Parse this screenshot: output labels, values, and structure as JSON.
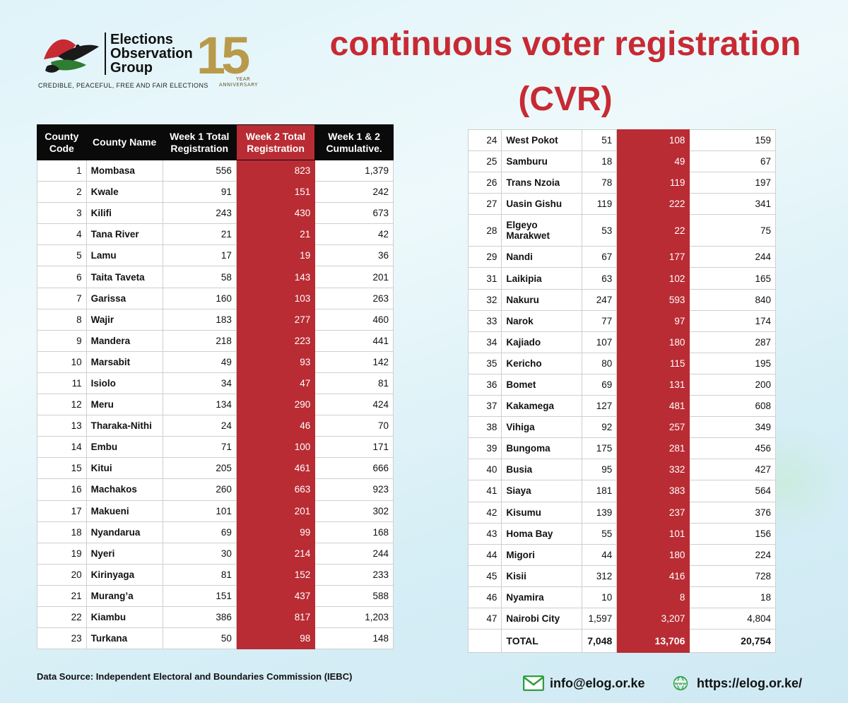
{
  "header": {
    "org_line1": "Elections",
    "org_line2": "Observation",
    "org_line3": "Group",
    "tagline": "CREDIBLE, PEACEFUL, FREE AND FAIR ELECTIONS",
    "anniversary_number": "15",
    "anniversary_year": "YEAR",
    "anniversary_label": "ANNIVERSARY",
    "title_line1": "continuous voter registration",
    "title_line2": "(CVR)"
  },
  "table": {
    "headers": {
      "code": "County Code",
      "name": "County Name",
      "week1": "Week 1 Total Registration",
      "week2": "Week 2 Total Registration",
      "cumulative": "Week 1 & 2 Cumulative."
    },
    "left_rows": [
      {
        "code": "1",
        "name": "Mombasa",
        "w1": "556",
        "w2": "823",
        "cum": "1,379"
      },
      {
        "code": "2",
        "name": "Kwale",
        "w1": "91",
        "w2": "151",
        "cum": "242"
      },
      {
        "code": "3",
        "name": "Kilifi",
        "w1": "243",
        "w2": "430",
        "cum": "673"
      },
      {
        "code": "4",
        "name": "Tana River",
        "w1": "21",
        "w2": "21",
        "cum": "42"
      },
      {
        "code": "5",
        "name": "Lamu",
        "w1": "17",
        "w2": "19",
        "cum": "36"
      },
      {
        "code": "6",
        "name": "Taita Taveta",
        "w1": "58",
        "w2": "143",
        "cum": "201"
      },
      {
        "code": "7",
        "name": "Garissa",
        "w1": "160",
        "w2": "103",
        "cum": "263"
      },
      {
        "code": "8",
        "name": "Wajir",
        "w1": "183",
        "w2": "277",
        "cum": "460"
      },
      {
        "code": "9",
        "name": "Mandera",
        "w1": "218",
        "w2": "223",
        "cum": "441"
      },
      {
        "code": "10",
        "name": "Marsabit",
        "w1": "49",
        "w2": "93",
        "cum": "142"
      },
      {
        "code": "11",
        "name": "Isiolo",
        "w1": "34",
        "w2": "47",
        "cum": "81"
      },
      {
        "code": "12",
        "name": "Meru",
        "w1": "134",
        "w2": "290",
        "cum": "424"
      },
      {
        "code": "13",
        "name": "Tharaka-Nithi",
        "w1": "24",
        "w2": "46",
        "cum": "70"
      },
      {
        "code": "14",
        "name": "Embu",
        "w1": "71",
        "w2": "100",
        "cum": "171"
      },
      {
        "code": "15",
        "name": "Kitui",
        "w1": "205",
        "w2": "461",
        "cum": "666"
      },
      {
        "code": "16",
        "name": "Machakos",
        "w1": "260",
        "w2": "663",
        "cum": "923"
      },
      {
        "code": "17",
        "name": "Makueni",
        "w1": "101",
        "w2": "201",
        "cum": "302"
      },
      {
        "code": "18",
        "name": "Nyandarua",
        "w1": "69",
        "w2": "99",
        "cum": "168"
      },
      {
        "code": "19",
        "name": "Nyeri",
        "w1": "30",
        "w2": "214",
        "cum": "244"
      },
      {
        "code": "20",
        "name": "Kirinyaga",
        "w1": "81",
        "w2": "152",
        "cum": "233"
      },
      {
        "code": "21",
        "name": "Murang’a",
        "w1": "151",
        "w2": "437",
        "cum": "588"
      },
      {
        "code": "22",
        "name": "Kiambu",
        "w1": "386",
        "w2": "817",
        "cum": "1,203"
      },
      {
        "code": "23",
        "name": "Turkana",
        "w1": "50",
        "w2": "98",
        "cum": "148"
      }
    ],
    "right_rows": [
      {
        "code": "24",
        "name": "West Pokot",
        "w1": "51",
        "w2": "108",
        "cum": "159"
      },
      {
        "code": "25",
        "name": "Samburu",
        "w1": "18",
        "w2": "49",
        "cum": "67"
      },
      {
        "code": "26",
        "name": "Trans Nzoia",
        "w1": "78",
        "w2": "119",
        "cum": "197"
      },
      {
        "code": "27",
        "name": "Uasin Gishu",
        "w1": "119",
        "w2": "222",
        "cum": "341"
      },
      {
        "code": "28",
        "name": "Elgeyo Marakwet",
        "w1": "53",
        "w2": "22",
        "cum": "75"
      },
      {
        "code": "29",
        "name": "Nandi",
        "w1": "67",
        "w2": "177",
        "cum": "244"
      },
      {
        "code": "31",
        "name": "Laikipia",
        "w1": "63",
        "w2": "102",
        "cum": "165"
      },
      {
        "code": "32",
        "name": "Nakuru",
        "w1": "247",
        "w2": "593",
        "cum": "840"
      },
      {
        "code": "33",
        "name": "Narok",
        "w1": "77",
        "w2": "97",
        "cum": "174"
      },
      {
        "code": "34",
        "name": "Kajiado",
        "w1": "107",
        "w2": "180",
        "cum": "287"
      },
      {
        "code": "35",
        "name": "Kericho",
        "w1": "80",
        "w2": "115",
        "cum": "195"
      },
      {
        "code": "36",
        "name": "Bomet",
        "w1": "69",
        "w2": "131",
        "cum": "200"
      },
      {
        "code": "37",
        "name": "Kakamega",
        "w1": "127",
        "w2": "481",
        "cum": "608"
      },
      {
        "code": "38",
        "name": "Vihiga",
        "w1": "92",
        "w2": "257",
        "cum": "349"
      },
      {
        "code": "39",
        "name": "Bungoma",
        "w1": "175",
        "w2": "281",
        "cum": "456"
      },
      {
        "code": "40",
        "name": "Busia",
        "w1": "95",
        "w2": "332",
        "cum": "427"
      },
      {
        "code": "41",
        "name": "Siaya",
        "w1": "181",
        "w2": "383",
        "cum": "564"
      },
      {
        "code": "42",
        "name": "Kisumu",
        "w1": "139",
        "w2": "237",
        "cum": "376"
      },
      {
        "code": "43",
        "name": "Homa Bay",
        "w1": "55",
        "w2": "101",
        "cum": "156"
      },
      {
        "code": "44",
        "name": "Migori",
        "w1": "44",
        "w2": "180",
        "cum": "224"
      },
      {
        "code": "45",
        "name": "Kisii",
        "w1": "312",
        "w2": "416",
        "cum": "728"
      },
      {
        "code": "46",
        "name": "Nyamira",
        "w1": "10",
        "w2": "8",
        "cum": "18"
      },
      {
        "code": "47",
        "name": "Nairobi City",
        "w1": "1,597",
        "w2": "3,207",
        "cum": "4,804"
      }
    ],
    "total": {
      "label": "TOTAL",
      "w1": "7,048",
      "w2": "13,706",
      "cum": "20,754"
    }
  },
  "footer": {
    "source": "Data Source: Independent Electoral and Boundaries Commission (IEBC)",
    "email": "info@elog.or.ke",
    "website": "https://elog.or.ke/"
  },
  "colors": {
    "accent_red": "#b92c34",
    "title_red": "#c72a33",
    "header_black": "#0a0a0a",
    "gold": "#b89a4a"
  },
  "icons": {
    "logo": "dove-logo-icon",
    "email": "envelope-icon",
    "web": "globe-www-icon"
  }
}
